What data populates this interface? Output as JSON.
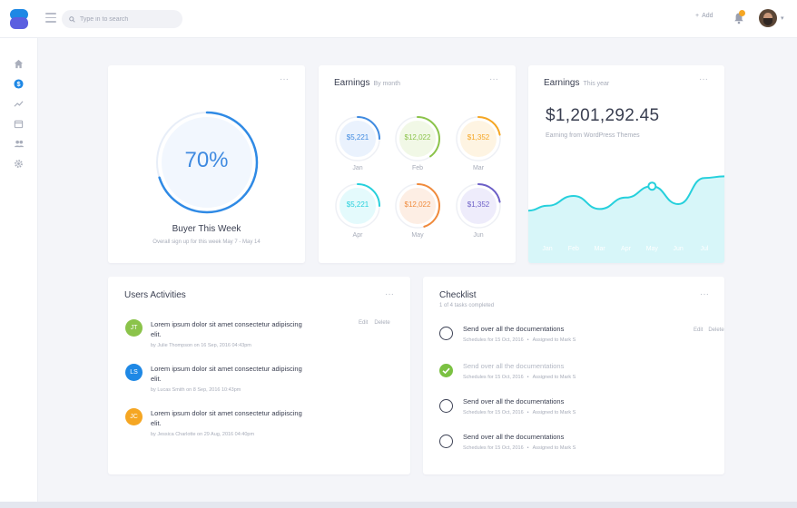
{
  "search": {
    "placeholder": "Type in to search"
  },
  "header": {
    "add_label": "Add",
    "colors": {
      "brand": "#1e88e5",
      "brand_secondary": "#5b5fe0",
      "badge": "#f5a623"
    }
  },
  "sidebar": {
    "icons": [
      "home-icon",
      "dollar-icon",
      "trending-icon",
      "calendar-icon",
      "users-icon",
      "gear-icon"
    ]
  },
  "buyer": {
    "percent": 70,
    "percent_label": "70%",
    "title": "Buyer This Week",
    "subtitle": "Overall sign up for this week May 7 - May 14"
  },
  "earnings_month": {
    "title": "Earnings",
    "subtitle": "By month",
    "items": [
      {
        "value": "$5,221",
        "month": "Jan",
        "color": "#3f8ae0",
        "fill": "#eaf2fd",
        "progress": 0.25
      },
      {
        "value": "$12,022",
        "month": "Feb",
        "color": "#8bc34a",
        "fill": "#f1f8e6",
        "progress": 0.4
      },
      {
        "value": "$1,352",
        "month": "Mar",
        "color": "#f5a623",
        "fill": "#fef4e2",
        "progress": 0.22
      },
      {
        "value": "$5,221",
        "month": "Apr",
        "color": "#26d0dc",
        "fill": "#e4fafc",
        "progress": 0.25
      },
      {
        "value": "$12,022",
        "month": "May",
        "color": "#f08a3c",
        "fill": "#fdeee4",
        "progress": 0.45
      },
      {
        "value": "$1,352",
        "month": "Jun",
        "color": "#6c5fc7",
        "fill": "#eeecfb",
        "progress": 0.22
      }
    ]
  },
  "earnings_year": {
    "title": "Earnings",
    "subtitle": "This year",
    "amount": "$1,201,292.45",
    "caption": "Earning from WordPress Themes"
  },
  "chart_data": {
    "type": "area",
    "title": "Earnings This year",
    "categories": [
      "Jan",
      "Feb",
      "Mar",
      "Apr",
      "May",
      "Jun",
      "Jul"
    ],
    "values": [
      28,
      40,
      24,
      38,
      52,
      30,
      62
    ],
    "ylim": [
      0,
      100
    ],
    "color": "#26d0dc",
    "fill": "#d7f6f9",
    "highlight_index": 4,
    "grid": false
  },
  "users": {
    "title": "Users Activities",
    "items": [
      {
        "initials": "JT",
        "color": "#8bc34a",
        "text": "Lorem ipsum dolor sit amet consectetur adipiscing elit.",
        "meta": "by Julie Thompson on 16 Sep, 2016 04:43pm",
        "edit": "Edit",
        "delete": "Delete"
      },
      {
        "initials": "LS",
        "color": "#1e88e5",
        "text": "Lorem ipsum dolor sit amet consectetur adipiscing elit.",
        "meta": "by Lucas Smith on 8 Sep, 2016 10:43pm"
      },
      {
        "initials": "JC",
        "color": "#f5a623",
        "text": "Lorem ipsum dolor sit amet consectetur adipiscing elit.",
        "meta": "by Jessica Charlotte on 29 Aug, 2016 04:40pm"
      }
    ]
  },
  "checklist": {
    "title": "Checklist",
    "subtitle": "1 of 4 tasks completed",
    "items": [
      {
        "title": "Send over all the documentations",
        "schedule": "Schedules for 15 Oct, 2016",
        "assignee": "Assigned to Mark S",
        "done": false,
        "edit": "Edit",
        "delete": "Delete"
      },
      {
        "title": "Send over all the documentations",
        "schedule": "Schedules for 15 Oct, 2016",
        "assignee": "Assigned to Mark S",
        "done": true
      },
      {
        "title": "Send over all the documentations",
        "schedule": "Schedules for 15 Oct, 2016",
        "assignee": "Assigned to Mark S",
        "done": false
      },
      {
        "title": "Send over all the documentations",
        "schedule": "Schedules for 15 Oct, 2016",
        "assignee": "Assigned to Mark S",
        "done": false
      }
    ]
  }
}
